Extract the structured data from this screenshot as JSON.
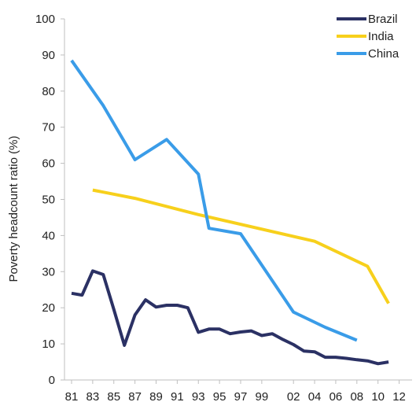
{
  "chart_data": {
    "type": "line",
    "xlabel": "",
    "ylabel": "Poverty headcount ratio (%)",
    "ylim": [
      0,
      100
    ],
    "yticks": [
      0,
      10,
      20,
      30,
      40,
      50,
      60,
      70,
      80,
      90,
      100
    ],
    "x_range": [
      1981,
      2013
    ],
    "xticks": [
      {
        "year": 1981,
        "label": "81"
      },
      {
        "year": 1983,
        "label": "83"
      },
      {
        "year": 1985,
        "label": "85"
      },
      {
        "year": 1987,
        "label": "87"
      },
      {
        "year": 1989,
        "label": "89"
      },
      {
        "year": 1991,
        "label": "91"
      },
      {
        "year": 1993,
        "label": "93"
      },
      {
        "year": 1995,
        "label": "95"
      },
      {
        "year": 1997,
        "label": "97"
      },
      {
        "year": 1999,
        "label": "99"
      },
      {
        "year": 2002,
        "label": "02"
      },
      {
        "year": 2004,
        "label": "04"
      },
      {
        "year": 2006,
        "label": "06"
      },
      {
        "year": 2008,
        "label": "08"
      },
      {
        "year": 2010,
        "label": "10"
      },
      {
        "year": 2012,
        "label": "12"
      }
    ],
    "grid": false,
    "legend_position": "top-right",
    "series": [
      {
        "name": "Brazil",
        "color": "#2b3164",
        "points": [
          [
            1981,
            24.0
          ],
          [
            1982,
            23.5
          ],
          [
            1983,
            30.2
          ],
          [
            1984,
            29.2
          ],
          [
            1985,
            19.5
          ],
          [
            1986,
            9.6
          ],
          [
            1987,
            18.0
          ],
          [
            1988,
            22.2
          ],
          [
            1989,
            20.2
          ],
          [
            1990,
            20.7
          ],
          [
            1991,
            20.7
          ],
          [
            1992,
            20.0
          ],
          [
            1993,
            13.2
          ],
          [
            1994,
            14.1
          ],
          [
            1995,
            14.1
          ],
          [
            1996,
            12.8
          ],
          [
            1997,
            13.3
          ],
          [
            1998,
            13.6
          ],
          [
            1999,
            12.3
          ],
          [
            2000,
            12.8
          ],
          [
            2001,
            11.2
          ],
          [
            2002,
            9.8
          ],
          [
            2003,
            8.0
          ],
          [
            2004,
            7.8
          ],
          [
            2005,
            6.3
          ],
          [
            2006,
            6.3
          ],
          [
            2007,
            6.0
          ],
          [
            2008,
            5.6
          ],
          [
            2009,
            5.3
          ],
          [
            2010,
            4.5
          ],
          [
            2011,
            5.0
          ]
        ]
      },
      {
        "name": "India",
        "color": "#f7d01c",
        "points": [
          [
            1983,
            52.6
          ],
          [
            1987,
            50.3
          ],
          [
            1993,
            45.8
          ],
          [
            2004,
            38.4
          ],
          [
            2009,
            31.5
          ],
          [
            2011,
            21.2
          ]
        ]
      },
      {
        "name": "China",
        "color": "#3a9ce8",
        "points": [
          [
            1981,
            88.5
          ],
          [
            1984,
            76.0
          ],
          [
            1987,
            61.0
          ],
          [
            1990,
            66.6
          ],
          [
            1993,
            57.0
          ],
          [
            1994,
            42.0
          ],
          [
            1997,
            40.5
          ],
          [
            2002,
            18.8
          ],
          [
            2005,
            14.6
          ],
          [
            2008,
            11.0
          ]
        ]
      }
    ]
  }
}
